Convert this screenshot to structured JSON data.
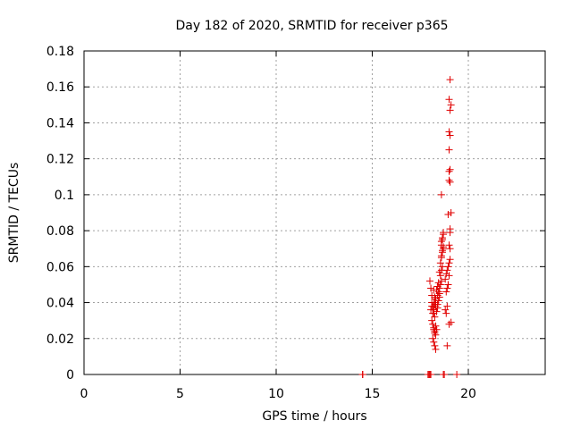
{
  "chart_data": {
    "type": "scatter",
    "title": "Day 182 of 2020, SRMTID for receiver p365",
    "xlabel": "GPS time / hours",
    "ylabel": "SRMTID / TECUs",
    "xlim": [
      0,
      24
    ],
    "ylim": [
      0,
      0.18
    ],
    "xticks": [
      "0",
      "5",
      "10",
      "15",
      "20"
    ],
    "xtick_values": [
      0,
      5,
      10,
      15,
      20
    ],
    "yticks": [
      "0",
      "0.02",
      "0.04",
      "0.06",
      "0.08",
      "0.1",
      "0.12",
      "0.14",
      "0.16",
      "0.18"
    ],
    "ytick_values": [
      0,
      0.02,
      0.04,
      0.06,
      0.08,
      0.1,
      0.12,
      0.14,
      0.16,
      0.18
    ],
    "grid": true,
    "marker": "+",
    "colors": {
      "points": "#e00000",
      "grid": "#a0a0a0",
      "axes": "#000000"
    },
    "series": [
      {
        "x": [
          14.5,
          14.5,
          14.5,
          17.9,
          17.95,
          18.0,
          18.05,
          18.7,
          18.75,
          19.4,
          18.0,
          18.05,
          18.1,
          18.1,
          18.15,
          18.2,
          18.2,
          18.25,
          18.3,
          18.3,
          18.1,
          18.15,
          18.2,
          18.25,
          18.3,
          18.35,
          18.15,
          18.2,
          18.25,
          18.3,
          18.35,
          18.4,
          18.4,
          18.45,
          18.5,
          18.5,
          18.05,
          18.1,
          18.2,
          18.3,
          18.4,
          18.45,
          18.5,
          18.55,
          18.6,
          18.55,
          18.6,
          18.65,
          18.5,
          18.55,
          18.6,
          18.65,
          18.7,
          18.6,
          18.65,
          18.7,
          18.6,
          18.65,
          18.7,
          18.6,
          18.65,
          18.7,
          18.8,
          18.85,
          18.9,
          18.85,
          18.9,
          18.95,
          18.8,
          18.85,
          18.9,
          18.95,
          19.0,
          19.0,
          19.05,
          19.05,
          19.0,
          19.05,
          19.05,
          19.1,
          18.95,
          19.0,
          19.05,
          19.0,
          19.05,
          19.0,
          19.05,
          19.0,
          19.05,
          19.1,
          19.0,
          19.05,
          19.1,
          18.6,
          18.9,
          18.95,
          19.0,
          18.2,
          18.3,
          18.25,
          18.2,
          18.25,
          18.3,
          18.35,
          18.4,
          18.45,
          18.15,
          18.2,
          18.25
        ],
        "y": [
          0.0,
          0.0,
          0.0,
          0.0,
          0.0,
          0.0,
          0.0,
          0.0,
          0.0,
          0.0,
          0.052,
          0.048,
          0.044,
          0.04,
          0.038,
          0.036,
          0.034,
          0.032,
          0.038,
          0.042,
          0.03,
          0.028,
          0.026,
          0.024,
          0.022,
          0.025,
          0.02,
          0.018,
          0.016,
          0.014,
          0.035,
          0.037,
          0.039,
          0.041,
          0.043,
          0.045,
          0.036,
          0.038,
          0.04,
          0.042,
          0.044,
          0.046,
          0.048,
          0.05,
          0.052,
          0.055,
          0.058,
          0.06,
          0.057,
          0.062,
          0.065,
          0.068,
          0.07,
          0.072,
          0.075,
          0.078,
          0.074,
          0.076,
          0.079,
          0.066,
          0.069,
          0.071,
          0.036,
          0.034,
          0.038,
          0.046,
          0.048,
          0.05,
          0.053,
          0.056,
          0.058,
          0.06,
          0.055,
          0.062,
          0.064,
          0.07,
          0.072,
          0.079,
          0.081,
          0.09,
          0.089,
          0.108,
          0.107,
          0.113,
          0.114,
          0.125,
          0.133,
          0.135,
          0.147,
          0.15,
          0.153,
          0.164,
          0.029,
          0.1,
          0.016,
          0.05,
          0.028,
          0.047,
          0.04,
          0.043,
          0.025,
          0.023,
          0.027,
          0.047,
          0.049,
          0.051,
          0.034,
          0.036,
          0.039
        ]
      }
    ]
  }
}
